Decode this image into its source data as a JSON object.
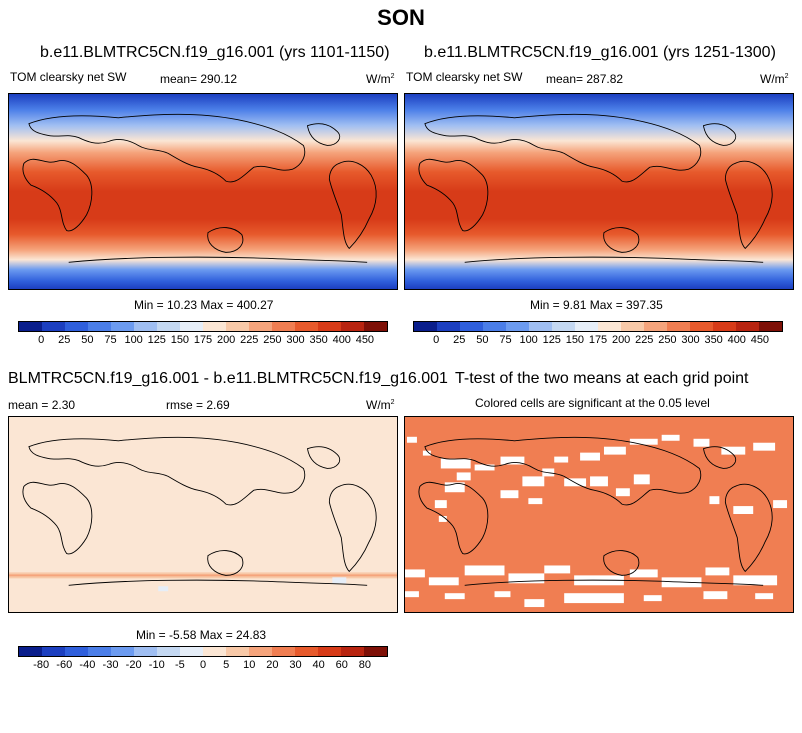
{
  "figure": {
    "title": "SON"
  },
  "panels": {
    "p1": {
      "title": "b.e11.BLMTRC5CN.f19_g16.001 (yrs 1101-1150)",
      "label": "TOM clearsky net SW",
      "mean": "mean= 290.12",
      "units_main": "W/m",
      "units_sup": "2",
      "minmax": "Min =  10.23 Max = 400.27"
    },
    "p2": {
      "title": "b.e11.BLMTRC5CN.f19_g16.001 (yrs 1251-1300)",
      "label": "TOM clearsky net SW",
      "mean": "mean= 287.82",
      "units_main": "W/m",
      "units_sup": "2",
      "minmax": "Min =   9.81 Max = 397.35"
    },
    "p3": {
      "title": "BLMTRC5CN.f19_g16.001 - b.e11.BLMTRC5CN.f19_g16.001",
      "mean": "mean =   2.30",
      "rmse": "rmse =   2.69",
      "units_main": "W/m",
      "units_sup": "2",
      "minmax": "Min =  -5.58 Max =  24.83"
    },
    "p4": {
      "title": "T-test of the two means at each grid point",
      "subtitle": "Colored cells are significant at the 0.05 level"
    }
  },
  "colorbars": {
    "abs": {
      "colors": [
        "#0a1e8c",
        "#1c3fc0",
        "#2f5fdc",
        "#4b7ee8",
        "#6c9bf0",
        "#9fbef2",
        "#c4d8f2",
        "#e6eef8",
        "#fbe6d4",
        "#f8c9a8",
        "#f5a47c",
        "#f07e52",
        "#e75a2c",
        "#d73b18",
        "#b82410",
        "#7e1007"
      ],
      "ticks": [
        "0",
        "25",
        "50",
        "75",
        "100",
        "125",
        "150",
        "175",
        "200",
        "225",
        "250",
        "300",
        "350",
        "400",
        "450"
      ]
    },
    "diff": {
      "colors": [
        "#0a1e8c",
        "#1c3fc0",
        "#2f5fdc",
        "#4b7ee8",
        "#6c9bf0",
        "#9fbef2",
        "#c4d8f2",
        "#e6eef8",
        "#fbe6d4",
        "#f8c9a8",
        "#f5a47c",
        "#f07e52",
        "#e75a2c",
        "#d73b18",
        "#b82410",
        "#7e1007"
      ],
      "ticks": [
        "-80",
        "-60",
        "-40",
        "-30",
        "-20",
        "-10",
        "-5",
        "0",
        "5",
        "10",
        "20",
        "30",
        "40",
        "60",
        "80"
      ]
    }
  },
  "colors": {
    "diff_background": "#fbe6d4",
    "ttest_fill": "#f07e52"
  }
}
